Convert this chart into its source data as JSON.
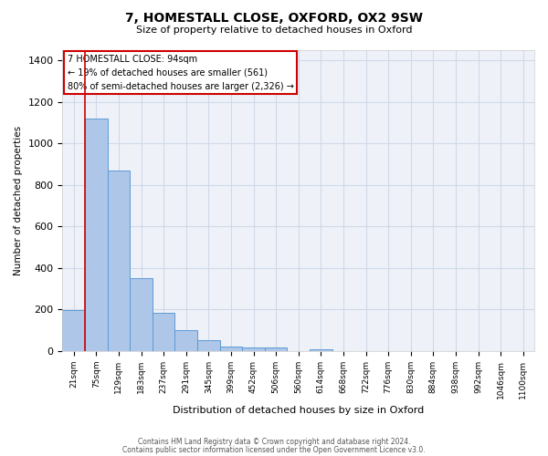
{
  "title": "7, HOMESTALL CLOSE, OXFORD, OX2 9SW",
  "subtitle": "Size of property relative to detached houses in Oxford",
  "xlabel": "Distribution of detached houses by size in Oxford",
  "ylabel": "Number of detached properties",
  "bin_labels": [
    "21sqm",
    "75sqm",
    "129sqm",
    "183sqm",
    "237sqm",
    "291sqm",
    "345sqm",
    "399sqm",
    "452sqm",
    "506sqm",
    "560sqm",
    "614sqm",
    "668sqm",
    "722sqm",
    "776sqm",
    "830sqm",
    "884sqm",
    "938sqm",
    "992sqm",
    "1046sqm",
    "1100sqm"
  ],
  "bar_heights": [
    195,
    1120,
    870,
    350,
    185,
    100,
    50,
    20,
    15,
    15,
    0,
    10,
    0,
    0,
    0,
    0,
    0,
    0,
    0,
    0,
    0
  ],
  "bar_color": "#aec6e8",
  "bar_edge_color": "#5b9bd5",
  "ylim": [
    0,
    1450
  ],
  "yticks": [
    0,
    200,
    400,
    600,
    800,
    1000,
    1200,
    1400
  ],
  "red_line_x": 0.5,
  "annotation_line1": "7 HOMESTALL CLOSE: 94sqm",
  "annotation_line2": "← 19% of detached houses are smaller (561)",
  "annotation_line3": "80% of semi-detached houses are larger (2,326) →",
  "annotation_box_color": "#ffffff",
  "annotation_box_edge": "#cc0000",
  "footer1": "Contains HM Land Registry data © Crown copyright and database right 2024.",
  "footer2": "Contains public sector information licensed under the Open Government Licence v3.0.",
  "grid_color": "#d0d8e8",
  "background_color": "#eef2f8"
}
